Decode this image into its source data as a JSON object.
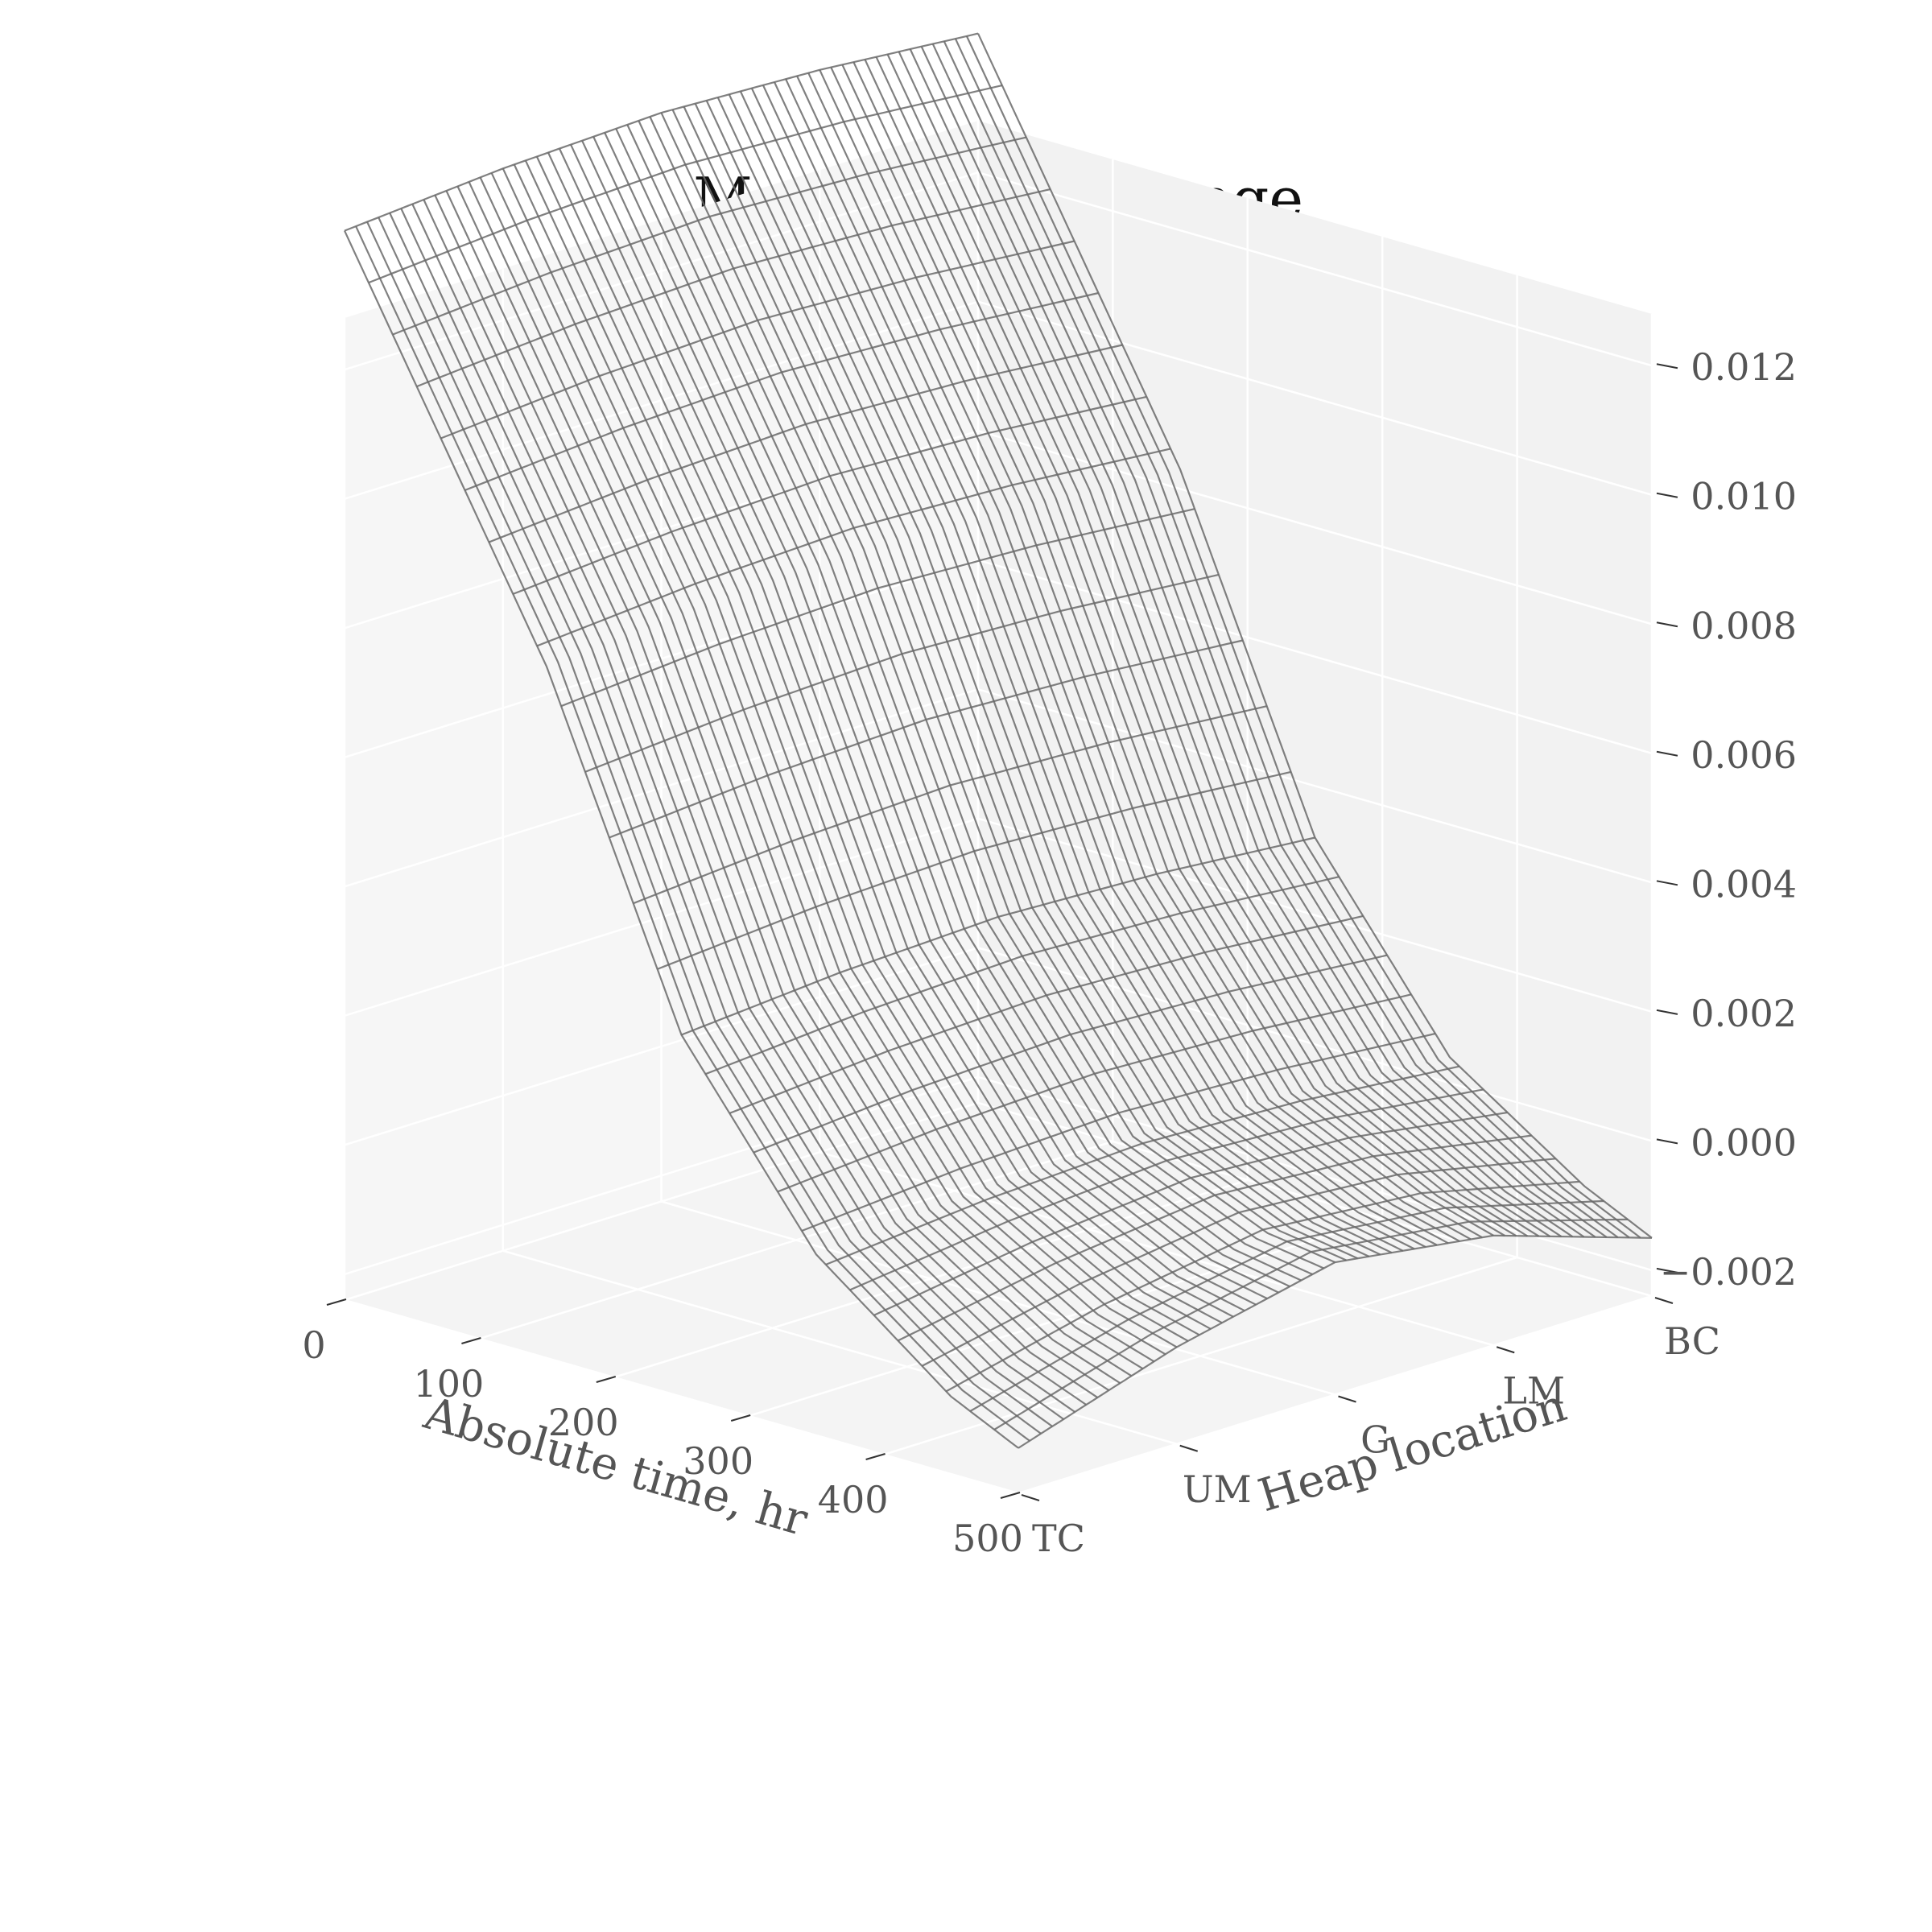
{
  "chart_data": {
    "type": "surface",
    "title": "Mean rate of change",
    "xlabel": "Absolute time, hr",
    "ylabel": "Heap location",
    "zlabel": "",
    "x_ticks": [
      "0",
      "100",
      "200",
      "300",
      "400",
      "500"
    ],
    "x_tick_values": [
      0,
      100,
      200,
      300,
      400,
      500
    ],
    "y_categories": [
      "TC",
      "UM",
      "G",
      "LM",
      "BC"
    ],
    "z_ticks": [
      "−0.002",
      "0.000",
      "0.002",
      "0.004",
      "0.006",
      "0.008",
      "0.010",
      "0.012"
    ],
    "z_tick_values": [
      -0.002,
      0.0,
      0.002,
      0.004,
      0.006,
      0.008,
      0.01,
      0.012
    ],
    "xlim": [
      0,
      500
    ],
    "zlim": [
      -0.0024,
      0.0128
    ],
    "grid": true,
    "surface_samples": {
      "description_of_axes": "rows = Heap location (TC..BC), columns = Absolute time, hr",
      "x": [
        50,
        150,
        250,
        350,
        450,
        550
      ],
      "y": [
        "TC",
        "UM",
        "G",
        "LM",
        "BC"
      ],
      "z": [
        [
          0.0122,
          0.0083,
          0.0032,
          0.0004,
          -0.0012,
          -0.0022
        ],
        [
          0.0124,
          0.0085,
          0.0034,
          0.0006,
          -0.0006,
          -0.0012
        ],
        [
          0.0125,
          0.0086,
          0.0035,
          0.0007,
          -0.0002,
          -0.0005
        ],
        [
          0.0124,
          0.0085,
          0.0034,
          0.0006,
          -0.0004,
          -0.001
        ],
        [
          0.0122,
          0.0083,
          0.0032,
          0.0004,
          -0.001,
          -0.002
        ]
      ]
    }
  }
}
